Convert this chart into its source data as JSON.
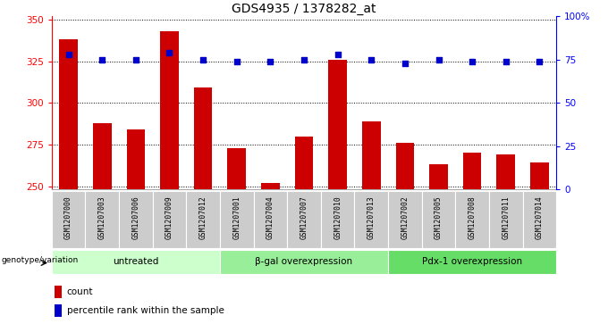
{
  "title": "GDS4935 / 1378282_at",
  "samples": [
    "GSM1207000",
    "GSM1207003",
    "GSM1207006",
    "GSM1207009",
    "GSM1207012",
    "GSM1207001",
    "GSM1207004",
    "GSM1207007",
    "GSM1207010",
    "GSM1207013",
    "GSM1207002",
    "GSM1207005",
    "GSM1207008",
    "GSM1207011",
    "GSM1207014"
  ],
  "bar_values": [
    338,
    288,
    284,
    343,
    309,
    273,
    252,
    280,
    326,
    289,
    276,
    263,
    270,
    269,
    264
  ],
  "blue_dots_pct": [
    78,
    75,
    75,
    79,
    75,
    74,
    74,
    75,
    78,
    75,
    73,
    75,
    74,
    74,
    74
  ],
  "bar_color": "#cc0000",
  "dot_color": "#0000cc",
  "ylim_left": [
    248,
    352
  ],
  "ylim_right": [
    0,
    100
  ],
  "yticks_left": [
    250,
    275,
    300,
    325,
    350
  ],
  "yticks_right": [
    0,
    25,
    50,
    75,
    100
  ],
  "ytick_labels_right": [
    "0",
    "25",
    "50",
    "75",
    "100%"
  ],
  "groups": [
    {
      "label": "untreated",
      "start": 0,
      "end": 5,
      "color": "#ccffcc"
    },
    {
      "label": "β-gal overexpression",
      "start": 5,
      "end": 10,
      "color": "#99ee99"
    },
    {
      "label": "Pdx-1 overexpression",
      "start": 10,
      "end": 15,
      "color": "#66dd66"
    }
  ],
  "group_label": "genotype/variation",
  "legend_count_label": "count",
  "legend_percentile_label": "percentile rank within the sample",
  "background_color": "#ffffff",
  "sample_bg_color": "#cccccc",
  "bar_width": 0.55
}
